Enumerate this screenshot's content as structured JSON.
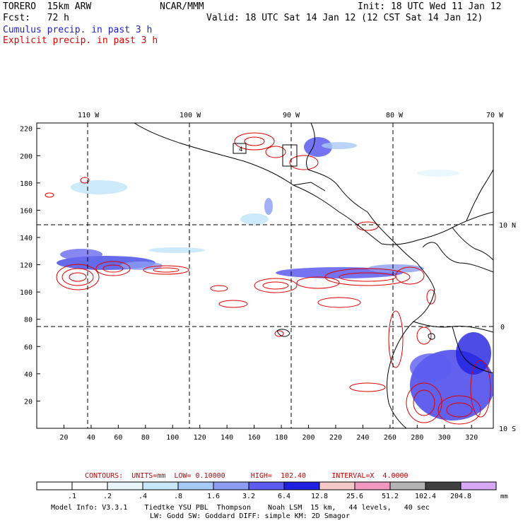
{
  "header": {
    "model": "TORERO  15km ARW",
    "org": "NCAR/MMM",
    "init": "Init: 18 UTC Wed 11 Jan 12",
    "fcst": "Fcst:   72 h",
    "valid": "Valid: 18 UTC Sat 14 Jan 12 (12 CST Sat 14 Jan 12)",
    "legend_cumulus": "Cumulus precip. in past 3 h",
    "legend_explicit": "Explicit precip. in past 3 h"
  },
  "map": {
    "lon_labels": [
      "110 W",
      "100 W",
      "90 W",
      "80 W",
      "70 W"
    ],
    "lat_labels": [
      "10 N",
      "0",
      "10 S"
    ],
    "x_ticks": [
      "20",
      "40",
      "60",
      "80",
      "100",
      "120",
      "140",
      "160",
      "180",
      "200",
      "220",
      "240",
      "260",
      "280",
      "300",
      "320"
    ],
    "y_ticks": [
      "20",
      "40",
      "60",
      "80",
      "100",
      "120",
      "140",
      "160",
      "180",
      "200",
      "220"
    ],
    "marker_label": "4",
    "colors": {
      "cumulus": "#2020c8",
      "explicit": "#e00000",
      "coast": "#000000"
    }
  },
  "contours_info": {
    "label": "CONTOURS:  UNITS=mm  LOW= 0.10000      HIGH=  102.40      INTERVAL=X  4.0000"
  },
  "colorbar": {
    "labels": [
      ".1",
      ".2",
      ".4",
      ".8",
      "1.6",
      "3.2",
      "6.4",
      "12.8",
      "25.6",
      "51.2",
      "102.4",
      "204.8"
    ],
    "unit": "mm",
    "colors": [
      "#ffffff",
      "#ffffff",
      "#e8f6fc",
      "#c8e8fa",
      "#a8c8f8",
      "#8c9cf4",
      "#5c5cf0",
      "#2020e0",
      "#f4c8c8",
      "#f098c0",
      "#b4b4b4",
      "#404040",
      "#d8a8f8"
    ]
  },
  "footer": {
    "line1": "Model Info: V3.3.1    Tiedtke YSU PBL  Thompson    Noah LSM  15 km,   44 levels,   40 sec",
    "line2": "LW: Godd SW: Goddard DIFF: simple KM: 2D Smagor"
  }
}
